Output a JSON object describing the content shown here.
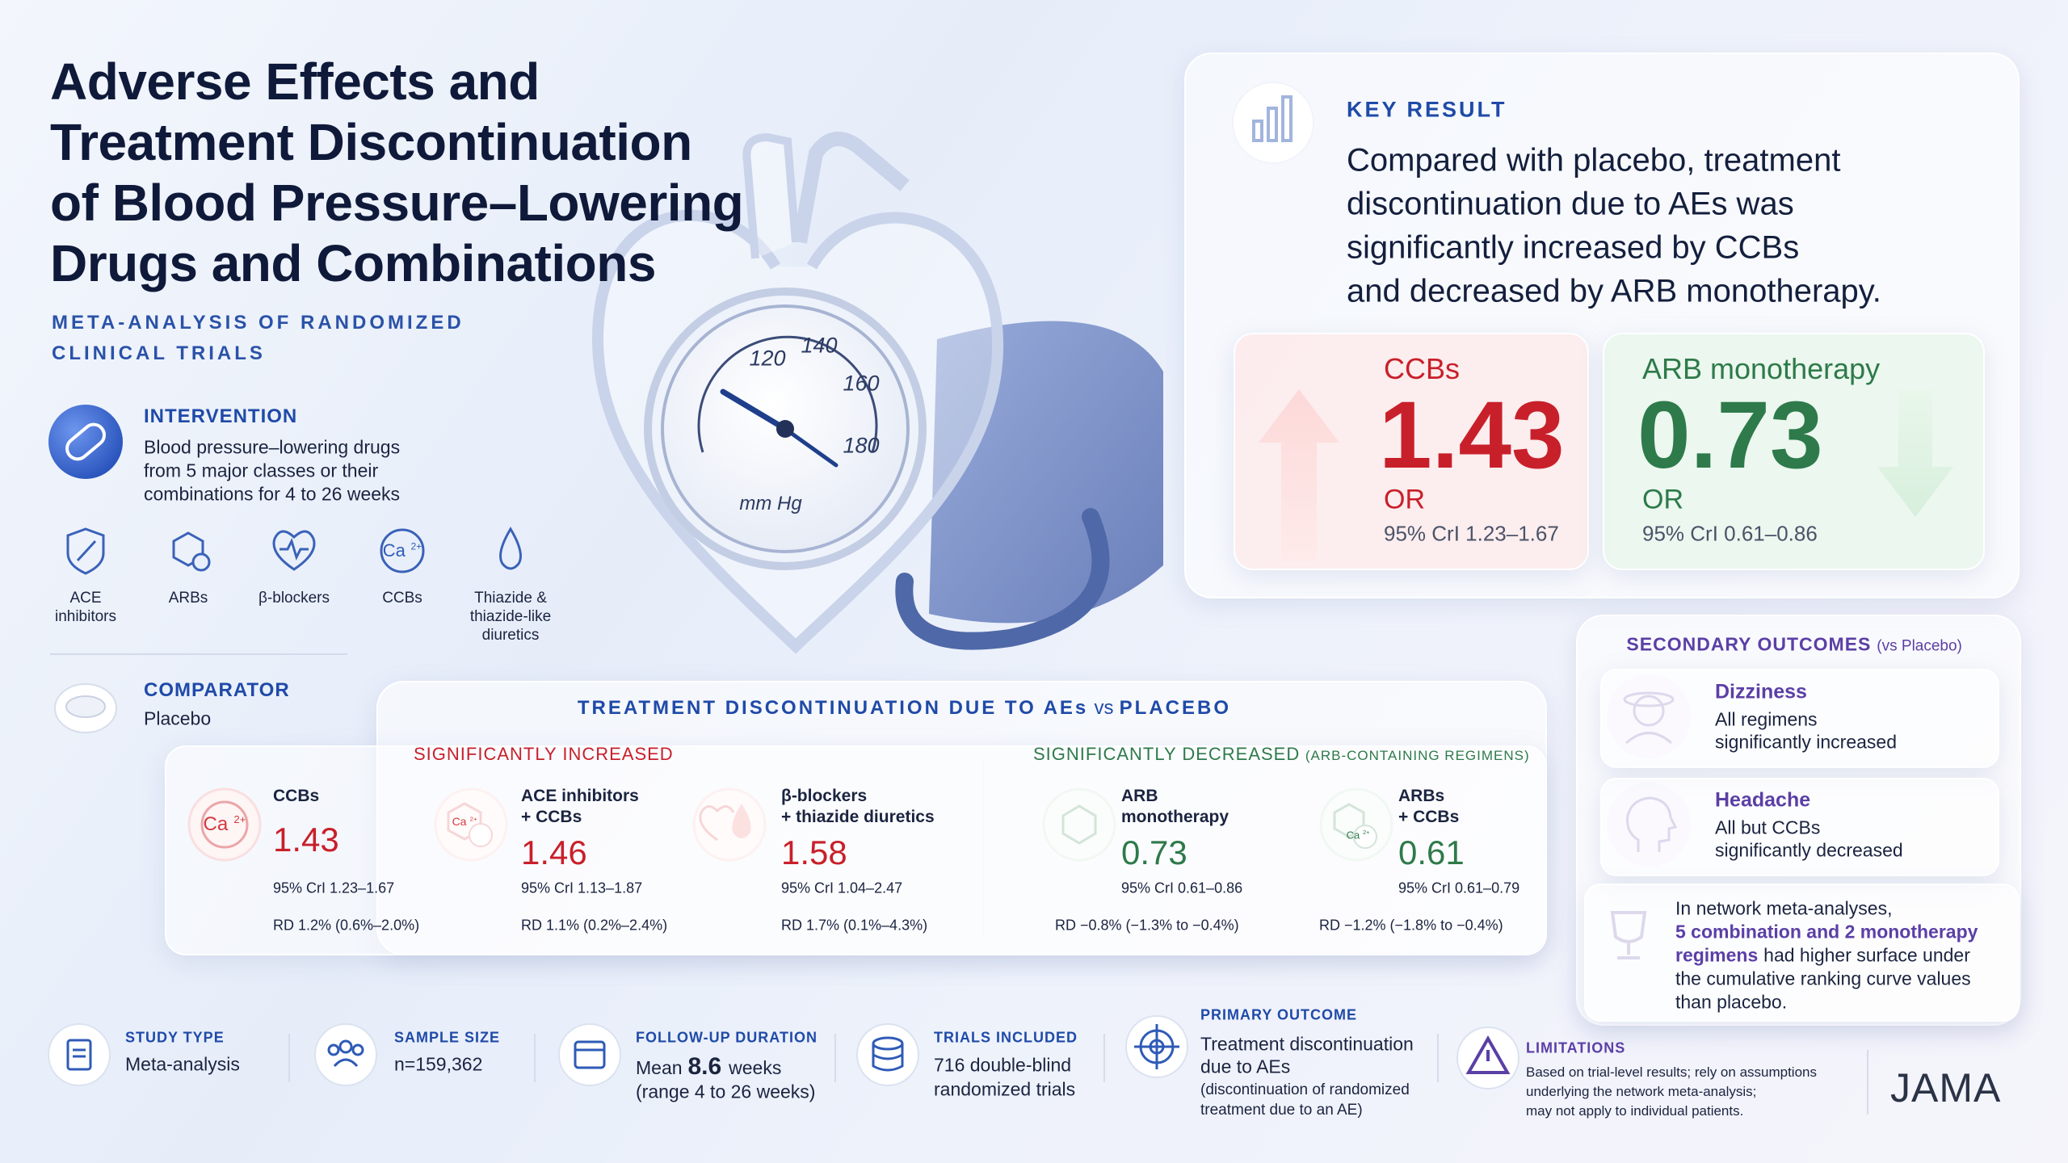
{
  "header": {
    "title_lines": [
      "Adverse Effects and",
      "Treatment Discontinuation",
      "of Blood Pressure–Lowering",
      "Drugs and Combinations"
    ],
    "subtitle_lines": [
      "META-ANALYSIS OF RANDOMIZED",
      "CLINICAL TRIALS"
    ]
  },
  "intervention": {
    "label": "INTERVENTION",
    "text_lines": [
      "Blood pressure–lowering drugs",
      "from 5 major classes or their",
      "combinations for 4 to 26 weeks"
    ],
    "classes": [
      [
        "ACE",
        "inhibitors"
      ],
      [
        "ARBs"
      ],
      [
        "β-blockers"
      ],
      [
        "CCBs"
      ],
      [
        "Thiazide &",
        "thiazide-like",
        "diuretics"
      ]
    ]
  },
  "icons": {
    "ion": "Ca",
    "charge": "2+"
  },
  "comparator": {
    "label": "COMPARATOR",
    "text": "Placebo"
  },
  "illustration": {
    "gauge_labels": [
      "120",
      "140",
      "160",
      "180"
    ],
    "unit": "mm Hg"
  },
  "key_result": {
    "label": "KEY RESULT",
    "text_lines": [
      "Compared with placebo, treatment",
      "discontinuation due to AEs was",
      "significantly increased by CCBs",
      "and decreased by ARB monotherapy."
    ],
    "cards": [
      {
        "name": "CCBs",
        "value": "1.43",
        "measure": "OR",
        "ci": "95% CrI 1.23–1.67"
      },
      {
        "name": "ARB monotherapy",
        "value": "0.73",
        "measure": "OR",
        "ci": "95% CrI 0.61–0.86"
      }
    ]
  },
  "discontinuation": {
    "title": "TREATMENT DISCONTINUATION DUE TO AEs",
    "title_vs": "vs",
    "title_end": "PLACEBO",
    "increased": {
      "label": "SIGNIFICANTLY INCREASED",
      "items": [
        {
          "name_lines": [
            "CCBs"
          ],
          "value": "1.43",
          "ci": "95% CrI 1.23–1.67",
          "rd": "RD 1.2% (0.6%–2.0%)"
        },
        {
          "name_lines": [
            "ACE inhibitors",
            "+ CCBs"
          ],
          "value": "1.46",
          "ci": "95% CrI 1.13–1.87",
          "rd": "RD 1.1% (0.2%–2.4%)"
        },
        {
          "name_lines": [
            "β-blockers",
            "+ thiazide diuretics"
          ],
          "value": "1.58",
          "ci": "95% CrI 1.04–2.47",
          "rd": "RD 1.7% (0.1%–4.3%)"
        }
      ]
    },
    "decreased": {
      "label": "SIGNIFICANTLY DECREASED",
      "note": "(ARB-CONTAINING REGIMENS)",
      "items": [
        {
          "name_lines": [
            "ARB",
            "monotherapy"
          ],
          "value": "0.73",
          "ci": "95% CrI 0.61–0.86",
          "rd": "RD −0.8% (−1.3% to −0.4%)"
        },
        {
          "name_lines": [
            "ARBs",
            "+ CCBs"
          ],
          "value": "0.61",
          "ci": "95% CrI 0.61–0.79",
          "rd": "RD −1.2% (−1.8% to −0.4%)"
        }
      ]
    }
  },
  "secondary": {
    "label": "SECONDARY OUTCOMES",
    "note": "(vs Placebo)",
    "items": [
      {
        "name": "Dizziness",
        "text_lines": [
          "All regimens",
          "significantly increased"
        ]
      },
      {
        "name": "Headache",
        "text_lines": [
          "All but CCBs",
          "significantly decreased"
        ]
      }
    ],
    "network": {
      "intro": "In network meta-analyses,",
      "highlight_lines": [
        "5 combination and 2 monotherapy",
        "regimens"
      ],
      "rest_lines": [
        "had higher surface under",
        "the cumulative ranking curve values",
        "than placebo."
      ]
    }
  },
  "footer": {
    "study_type": {
      "label": "STUDY TYPE",
      "text": "Meta-analysis"
    },
    "sample_size": {
      "label": "SAMPLE SIZE",
      "text": "n=159,362"
    },
    "follow_up": {
      "label": "FOLLOW-UP DURATION",
      "pre": "Mean",
      "value": "8.6",
      "unit": "weeks",
      "range": "(range 4 to 26 weeks)"
    },
    "trials": {
      "label": "TRIALS INCLUDED",
      "text_lines": [
        "716 double-blind",
        "randomized trials"
      ]
    },
    "primary_outcome": {
      "label": "PRIMARY OUTCOME",
      "text_lines": [
        "Treatment discontinuation",
        "due to AEs"
      ],
      "note_lines": [
        "(discontinuation of randomized",
        "treatment due to an AE)"
      ]
    },
    "limitations": {
      "label": "LIMITATIONS",
      "text_lines": [
        "Based on trial-level results; rely on assumptions",
        "underlying the network meta-analysis;",
        "may not apply to individual patients."
      ]
    },
    "brand": "JAMA"
  }
}
